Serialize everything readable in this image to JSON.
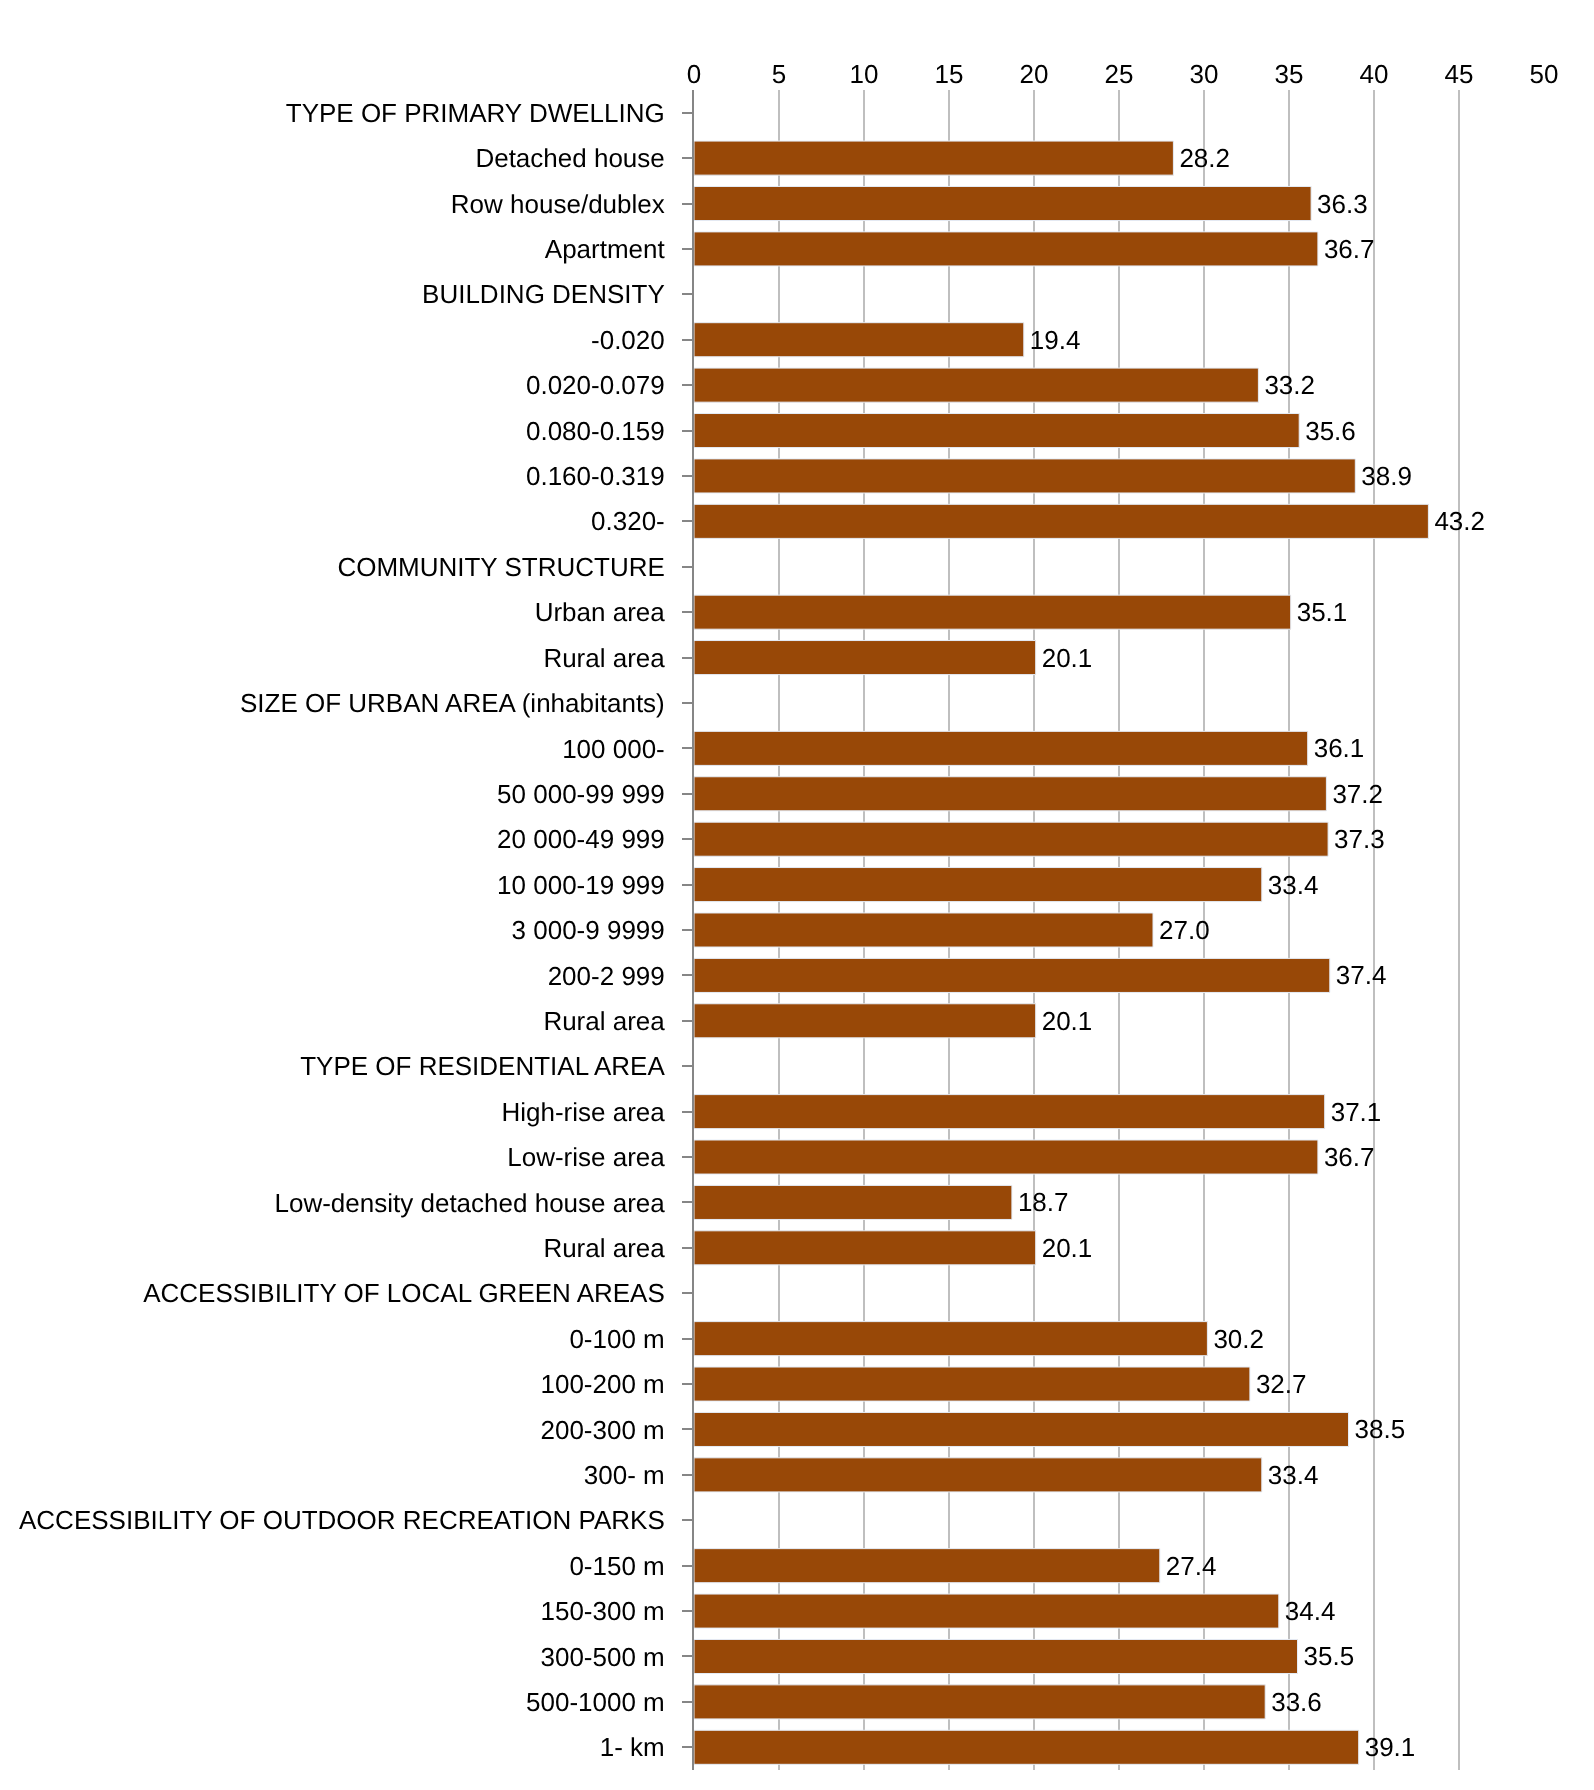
{
  "chart_data": {
    "type": "bar",
    "orientation": "horizontal",
    "categories": [
      "TYPE OF PRIMARY DWELLING",
      "Detached house",
      "Row house/dublex",
      "Apartment",
      "BUILDING DENSITY",
      "-0.020",
      "0.020-0.079",
      "0.080-0.159",
      "0.160-0.319",
      "0.320-",
      "COMMUNITY STRUCTURE",
      "Urban area",
      "Rural area",
      "SIZE OF URBAN AREA (inhabitants)",
      "100 000-",
      "50 000-99 999",
      "20 000-49 999",
      "10 000-19 999",
      "3 000-9 9999",
      "200-2 999",
      "Rural area",
      "TYPE OF RESIDENTIAL AREA",
      "High-rise area",
      "Low-rise area",
      "Low-density detached house area",
      "Rural area",
      "ACCESSIBILITY OF LOCAL GREEN AREAS",
      "0-100 m",
      "100-200 m",
      "200-300 m",
      "300- m",
      "ACCESSIBILITY OF OUTDOOR RECREATION PARKS",
      "0-150 m",
      "150-300 m",
      "300-500 m",
      "500-1000 m",
      "1- km"
    ],
    "series": [
      {
        "color": "#984807",
        "values": [
          null,
          28.2,
          36.3,
          36.7,
          null,
          19.4,
          33.2,
          35.6,
          38.9,
          43.2,
          null,
          35.1,
          20.1,
          null,
          36.1,
          37.2,
          37.3,
          33.4,
          27.0,
          37.4,
          20.1,
          null,
          37.1,
          36.7,
          18.7,
          20.1,
          null,
          30.2,
          32.7,
          38.5,
          33.4,
          null,
          27.4,
          34.4,
          35.5,
          33.6,
          39.1
        ],
        "value_labels": [
          null,
          "28.2",
          "36.3",
          "36.7",
          null,
          "19.4",
          "33.2",
          "35.6",
          "38.9",
          "43.2",
          null,
          "35.1",
          "20.1",
          null,
          "36.1",
          "37.2",
          "37.3",
          "33.4",
          "27.0",
          "37.4",
          "20.1",
          null,
          "37.1",
          "36.7",
          "18.7",
          "20.1",
          null,
          "30.2",
          "32.7",
          "38.5",
          "33.4",
          null,
          "27.4",
          "34.4",
          "35.5",
          "33.6",
          "39.1"
        ]
      }
    ],
    "xlim": [
      0,
      50
    ],
    "xticks": [
      0,
      5,
      10,
      15,
      20,
      25,
      30,
      35,
      40,
      45,
      50
    ],
    "grid": "x"
  }
}
